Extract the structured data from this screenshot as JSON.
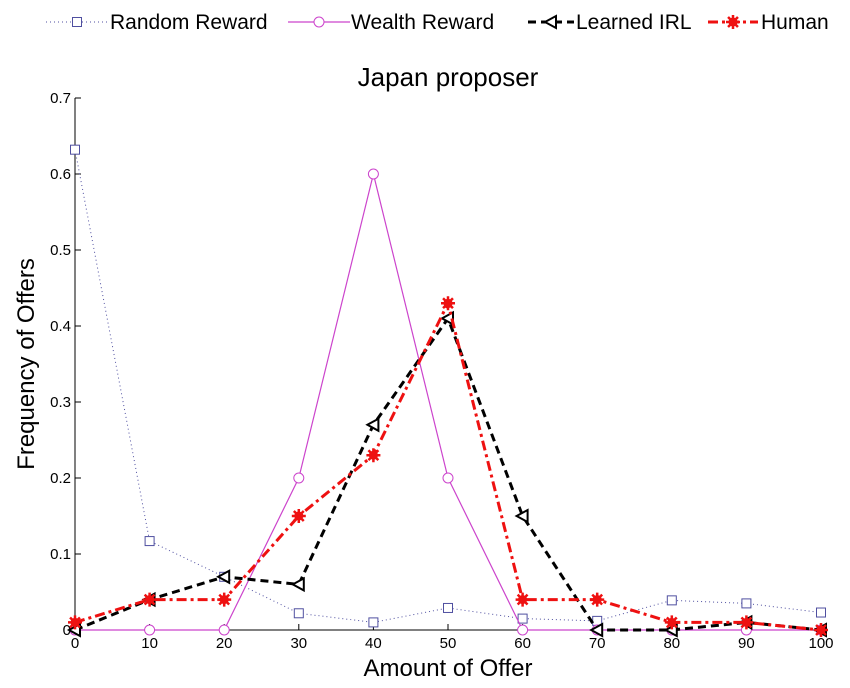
{
  "chart_data": {
    "type": "line",
    "title": "Japan proposer",
    "xlabel": "Amount of Offer",
    "ylabel": "Frequency of Offers",
    "xlim": [
      0,
      100
    ],
    "ylim": [
      0,
      0.7
    ],
    "x_ticks": [
      0,
      10,
      20,
      30,
      40,
      50,
      60,
      70,
      80,
      90,
      100
    ],
    "y_ticks": [
      0,
      0.1,
      0.2,
      0.3,
      0.4,
      0.5,
      0.6,
      0.7
    ],
    "x_tick_labels": [
      "0",
      "10",
      "20",
      "30",
      "40",
      "50",
      "60",
      "70",
      "80",
      "90",
      "100"
    ],
    "y_tick_labels": [
      "0",
      "0.1",
      "0.2",
      "0.3",
      "0.4",
      "0.5",
      "0.6",
      "0.7"
    ],
    "grid": false,
    "legend_position": "top",
    "x": [
      0,
      10,
      20,
      30,
      40,
      50,
      60,
      70,
      80,
      90,
      100
    ],
    "series": [
      {
        "name": "Random Reward",
        "color": "#4f4fa0",
        "line_style": "dotted",
        "marker": "square",
        "values": [
          0.632,
          0.117,
          0.07,
          0.022,
          0.01,
          0.029,
          0.015,
          0.012,
          0.039,
          0.035,
          0.023
        ]
      },
      {
        "name": "Wealth Reward",
        "color": "#cc44cc",
        "line_style": "solid",
        "marker": "circle",
        "values": [
          0.0,
          0.0,
          0.0,
          0.2,
          0.6,
          0.2,
          0.0,
          0.0,
          0.0,
          0.0,
          0.0
        ]
      },
      {
        "name": "Learned IRL",
        "color": "#000000",
        "line_style": "dashed",
        "marker": "triangle-left",
        "values": [
          0.0,
          0.04,
          0.07,
          0.06,
          0.27,
          0.41,
          0.15,
          0.0,
          0.0,
          0.01,
          0.0
        ]
      },
      {
        "name": "Human",
        "color": "#ee1111",
        "line_style": "dash-dot",
        "marker": "star",
        "values": [
          0.01,
          0.04,
          0.04,
          0.15,
          0.23,
          0.43,
          0.04,
          0.04,
          0.01,
          0.01,
          0.0
        ]
      }
    ]
  }
}
